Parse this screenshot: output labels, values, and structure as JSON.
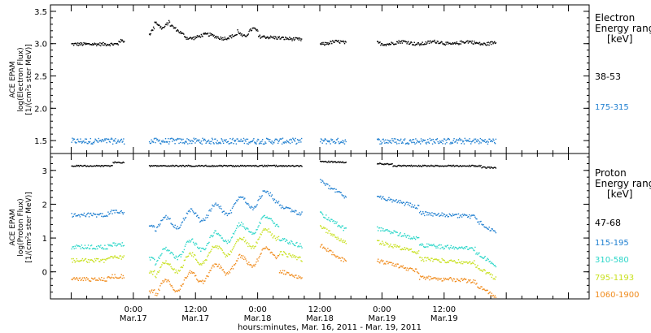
{
  "chart_data": [
    {
      "type": "scatter",
      "ylabel_lines": [
        "ACE EPAM",
        "log(Electron Flux)",
        "[1/(cm²s ster MeV)]"
      ],
      "yticks": [
        "1.5",
        "2.0",
        "2.5",
        "3.0",
        "3.5"
      ],
      "ylim": [
        1.3,
        3.6
      ],
      "legend_title": [
        "Electron",
        "Energy ranges",
        "[keV]"
      ],
      "series": [
        {
          "name": "38-53",
          "color": "#000000",
          "kind": "electron_hi",
          "segments": [
            [
              -12,
              -1.8
            ],
            [
              3,
              32.5
            ],
            [
              36,
              41
            ],
            [
              47,
              70
            ]
          ]
        },
        {
          "name": "175-315",
          "color": "#1f7fd0",
          "kind": "electron_lo",
          "segments": [
            [
              -12,
              -1.8
            ],
            [
              3,
              32.5
            ],
            [
              36,
              41
            ],
            [
              47,
              70
            ]
          ]
        }
      ]
    },
    {
      "type": "scatter",
      "ylabel_lines": [
        "ACE EPAM",
        "log(Proton Flux)",
        "[1/(cm²s ster MeV)]"
      ],
      "yticks": [
        "0",
        "1",
        "2",
        "3"
      ],
      "ylim": [
        -0.8,
        3.5
      ],
      "legend_title": [
        "Proton",
        "Energy ranges",
        "[keV]"
      ],
      "series": [
        {
          "name": "47-68",
          "color": "#000000",
          "base": 3.15
        },
        {
          "name": "115-195",
          "color": "#1f7fd0",
          "base": 1.7
        },
        {
          "name": "310-580",
          "color": "#2ad6c8",
          "base": 0.75
        },
        {
          "name": "795-1193",
          "color": "#c8e01e",
          "base": 0.35
        },
        {
          "name": "1060-1900",
          "color": "#f08a1a",
          "base": -0.2
        }
      ]
    }
  ],
  "x_axis": {
    "xlim": [
      -16,
      88
    ],
    "major_ticks": [
      0,
      12,
      24,
      36,
      48,
      60,
      72,
      84
    ],
    "labels": [
      {
        "time": "0:00",
        "date": "Mar.17"
      },
      {
        "time": "12:00",
        "date": "Mar.17"
      },
      {
        "time": "0:00",
        "date": "Mar.18"
      },
      {
        "time": "12:00",
        "date": "Mar.18"
      },
      {
        "time": "0:00",
        "date": "Mar.19"
      },
      {
        "time": "12:00",
        "date": "Mar.19"
      }
    ],
    "title": "hours:minutes, Mar. 16, 2011 - Mar. 19, 2011"
  }
}
